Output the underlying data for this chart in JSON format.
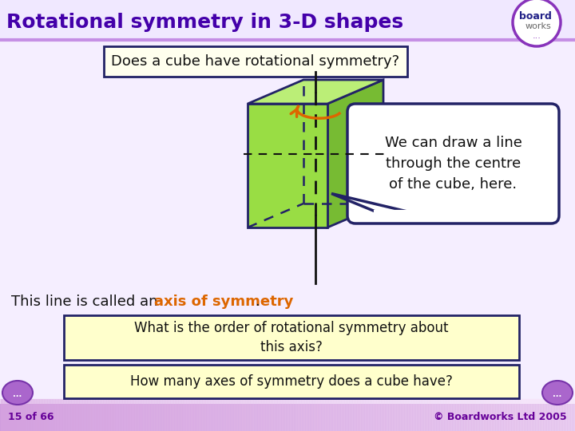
{
  "title": "Rotational symmetry in 3-D shapes",
  "title_color": "#4400aa",
  "bg_color": "#f5eeff",
  "question_text": "Does a cube have rotational symmetry?",
  "question_box_bg": "#ffffee",
  "question_box_border": "#222266",
  "callout_text": "We can draw a line\nthrough the centre\nof the cube, here.",
  "callout_bg": "#ffffff",
  "callout_border": "#222266",
  "axis_line_text": "This line is called an ",
  "axis_highlight": "axis of symmetry",
  "axis_suffix": ".",
  "axis_text_color": "#111111",
  "axis_highlight_color": "#dd6600",
  "box1_text": "What is the order of rotational symmetry about\nthis axis?",
  "box2_text": "How many axes of symmetry does a cube have?",
  "box_bg": "#ffffcc",
  "box_border": "#222266",
  "footer_left": "15 of 66",
  "footer_right": "© Boardworks Ltd 2005",
  "footer_text_color": "#660099",
  "cube_front_color": "#99dd44",
  "cube_right_color": "#77bb33",
  "cube_top_color": "#bbee77",
  "cube_edge_color": "#222266",
  "rotation_arrow_color": "#dd6600",
  "axis_line_color": "#111111",
  "header_line_color": "#9944bb",
  "footer_bar_color": "#cc99dd",
  "nav_oval_color": "#aa66cc",
  "nav_oval_border": "#7733aa",
  "logo_circle_color": "#ffffff",
  "logo_border_color": "#8833bb",
  "logo_board_color": "#222288",
  "logo_works_color": "#666666",
  "logo_dots_color": "#8833bb"
}
